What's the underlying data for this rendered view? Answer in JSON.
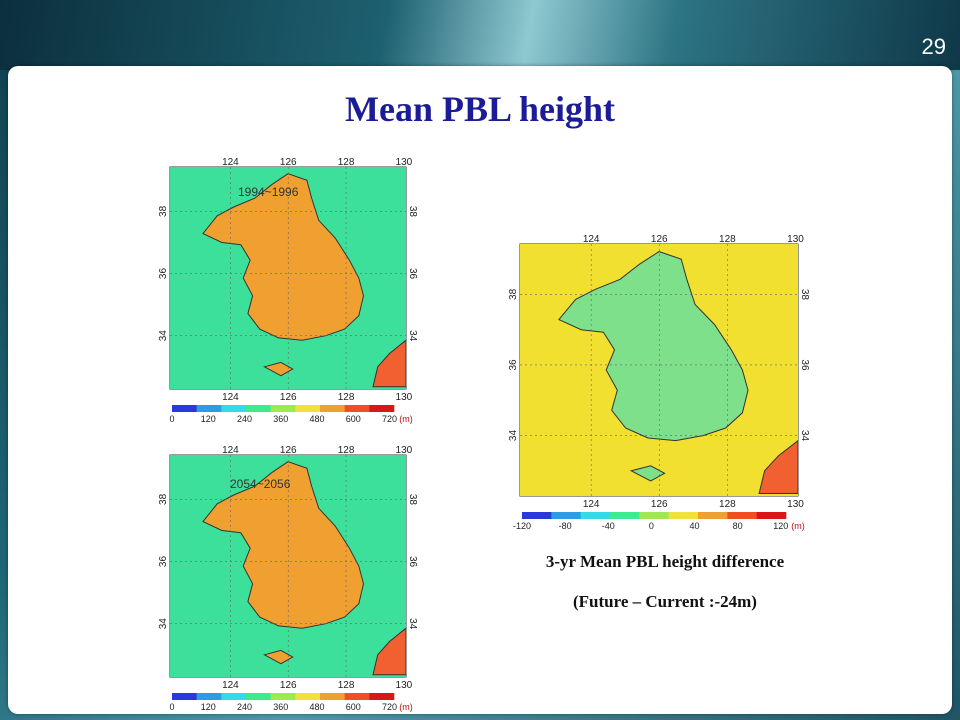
{
  "slide": {
    "number": "29",
    "title": "Mean PBL height"
  },
  "maps": [
    {
      "id": "current",
      "period_label": "1994~1996",
      "lon_ticks": [
        "124",
        "126",
        "128",
        "130"
      ],
      "lat_ticks": [
        "38",
        "36",
        "34"
      ],
      "colorbar_ticks": [
        "0",
        "120",
        "240",
        "360",
        "480",
        "600",
        "720"
      ],
      "unit": "(m)",
      "sea_color": "#3ce09a",
      "land_color": "#f0a030"
    },
    {
      "id": "future",
      "period_label": "2054~2056",
      "lon_ticks": [
        "124",
        "126",
        "128",
        "130"
      ],
      "lat_ticks": [
        "38",
        "36",
        "34"
      ],
      "colorbar_ticks": [
        "0",
        "120",
        "240",
        "360",
        "480",
        "600",
        "720"
      ],
      "unit": "(m)",
      "sea_color": "#3ce09a",
      "land_color": "#f0a030"
    },
    {
      "id": "difference",
      "lon_ticks": [
        "124",
        "126",
        "128",
        "130"
      ],
      "lat_ticks": [
        "38",
        "36",
        "34"
      ],
      "colorbar_ticks": [
        "-120",
        "-80",
        "-40",
        "0",
        "40",
        "80",
        "120"
      ],
      "unit": "(m)",
      "sea_color": "#f2e030",
      "land_color": "#7ee08a"
    }
  ],
  "caption": {
    "line1": "3-yr Mean PBL height difference",
    "line2": "(Future – Current :-24m)"
  }
}
